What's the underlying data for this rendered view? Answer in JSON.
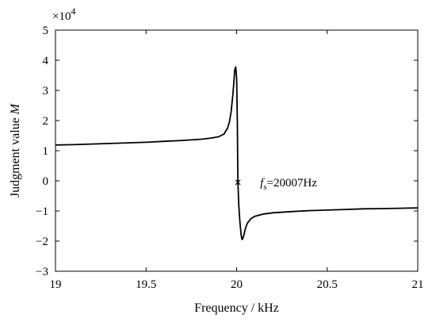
{
  "chart_data": {
    "type": "line",
    "title": "",
    "xlabel": "Frequency / kHz",
    "ylabel_prefix": "Judgment value ",
    "ylabel_var": "M",
    "xlim": [
      19,
      21
    ],
    "ylim": [
      -3,
      5
    ],
    "y_multiplier_base": "×10",
    "y_multiplier_exp": "4",
    "grid": false,
    "legend": "none",
    "x_ticks": [
      19,
      19.5,
      20,
      20.5,
      21
    ],
    "x_tick_labels": [
      "19",
      "19.5",
      "20",
      "20.5",
      "21"
    ],
    "y_ticks": [
      -3,
      -2,
      -1,
      0,
      1,
      2,
      3,
      4,
      5
    ],
    "y_tick_labels": [
      "−3",
      "−2",
      "−1",
      "0",
      "1",
      "2",
      "3",
      "4",
      "5"
    ],
    "series": [
      {
        "color": "#000000",
        "x": [
          19.0,
          19.1,
          19.2,
          19.3,
          19.4,
          19.5,
          19.6,
          19.7,
          19.8,
          19.85,
          19.9,
          19.93,
          19.95,
          19.96,
          19.97,
          19.98,
          19.985,
          19.99,
          19.995,
          20.0,
          20.004,
          20.007,
          20.012,
          20.018,
          20.025,
          20.03,
          20.035,
          20.04,
          20.05,
          20.06,
          20.08,
          20.1,
          20.15,
          20.2,
          20.3,
          20.4,
          20.5,
          20.6,
          20.7,
          20.8,
          20.9,
          21.0
        ],
        "y": [
          1.19,
          1.2,
          1.22,
          1.24,
          1.26,
          1.28,
          1.31,
          1.34,
          1.38,
          1.41,
          1.46,
          1.55,
          1.75,
          1.95,
          2.3,
          2.9,
          3.3,
          3.7,
          3.78,
          3.4,
          2.0,
          -0.05,
          -0.8,
          -1.35,
          -1.8,
          -1.95,
          -1.9,
          -1.8,
          -1.55,
          -1.4,
          -1.25,
          -1.18,
          -1.1,
          -1.06,
          -1.02,
          -0.99,
          -0.97,
          -0.95,
          -0.93,
          -0.92,
          -0.91,
          -0.9
        ]
      }
    ],
    "marker": {
      "x": 20.007,
      "y": -0.05,
      "label_base": "f",
      "label_sub": "s",
      "label_rest": "=20007Hz"
    }
  }
}
